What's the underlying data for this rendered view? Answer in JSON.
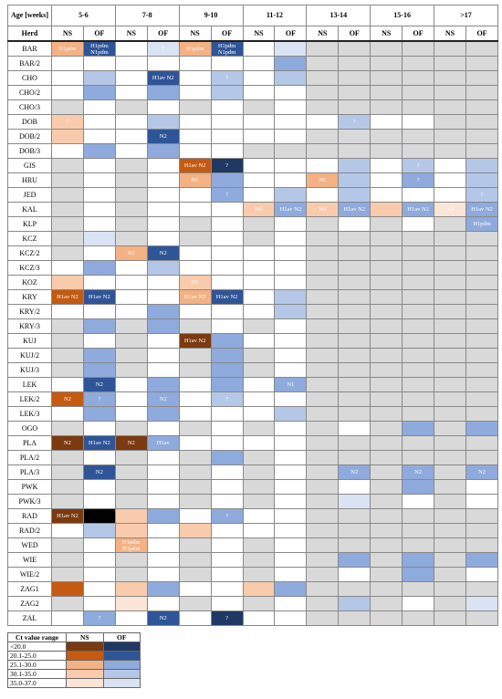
{
  "header": {
    "age_label": "Age [weeks]",
    "herd_label": "Herd",
    "age_groups": [
      "5-6",
      "7-8",
      "9-10",
      "11-12",
      "13-14",
      "15-16",
      ">17"
    ],
    "sub": [
      "NS",
      "OF"
    ]
  },
  "rows": [
    {
      "herd": "BAR",
      "cells": [
        {
          "color": "#f4b183",
          "text": "N1pdm"
        },
        {
          "color": "#2f5597",
          "text": "H1pdm N1pdm"
        },
        "#ffffff",
        {
          "color": "#dae3f3",
          "text": "?"
        },
        {
          "color": "#f4b183",
          "text": "H1pdm"
        },
        {
          "color": "#2f5597",
          "text": "H1pdm N1pdm"
        },
        "#ffffff",
        "#dae3f3",
        "#d9d9d9",
        "#d9d9d9",
        "#d9d9d9",
        "#d9d9d9",
        "#d9d9d9",
        "#d9d9d9"
      ]
    },
    {
      "herd": "BAR/2",
      "cells": [
        "#ffffff",
        "#ffffff",
        "#ffffff",
        "#ffffff",
        "#ffffff",
        "#ffffff",
        "#ffffff",
        "#8faadc",
        "#d9d9d9",
        "#d9d9d9",
        "#d9d9d9",
        "#d9d9d9",
        "#d9d9d9",
        "#d9d9d9"
      ]
    },
    {
      "herd": "CHO",
      "cells": [
        "#ffffff",
        "#b4c7e7",
        "#ffffff",
        {
          "color": "#2f5597",
          "text": "H1av N2"
        },
        "#ffffff",
        {
          "color": "#b4c7e7",
          "text": "?"
        },
        "#ffffff",
        "#b4c7e7",
        "#d9d9d9",
        "#d9d9d9",
        "#d9d9d9",
        "#d9d9d9",
        "#d9d9d9",
        "#d9d9d9"
      ]
    },
    {
      "herd": "CHO/2",
      "cells": [
        "#ffffff",
        "#8faadc",
        "#ffffff",
        "#8faadc",
        "#ffffff",
        "#b4c7e7",
        "#ffffff",
        "#ffffff",
        "#d9d9d9",
        "#d9d9d9",
        "#d9d9d9",
        "#d9d9d9",
        "#d9d9d9",
        "#d9d9d9"
      ]
    },
    {
      "herd": "CHO/3",
      "cells": [
        "#d9d9d9",
        "#ffffff",
        "#d9d9d9",
        "#ffffff",
        "#d9d9d9",
        "#ffffff",
        "#d9d9d9",
        "#ffffff",
        "#d9d9d9",
        "#d9d9d9",
        "#d9d9d9",
        "#d9d9d9",
        "#d9d9d9",
        "#d9d9d9"
      ]
    },
    {
      "herd": "DOB",
      "cells": [
        {
          "color": "#f8cbad",
          "text": "?"
        },
        "#ffffff",
        "#ffffff",
        "#b4c7e7",
        "#ffffff",
        "#ffffff",
        "#ffffff",
        "#ffffff",
        "#ffffff",
        {
          "color": "#b4c7e7",
          "text": "?"
        },
        "#ffffff",
        "#ffffff",
        "#d9d9d9",
        "#d9d9d9"
      ]
    },
    {
      "herd": "DOB/2",
      "cells": [
        "#f8cbad",
        "#ffffff",
        "#ffffff",
        {
          "color": "#2f5597",
          "text": "N2"
        },
        "#ffffff",
        "#ffffff",
        "#ffffff",
        "#ffffff",
        "#d9d9d9",
        "#d9d9d9",
        "#d9d9d9",
        "#d9d9d9",
        "#d9d9d9",
        "#d9d9d9"
      ]
    },
    {
      "herd": "DOB/3",
      "cells": [
        "#ffffff",
        "#8faadc",
        "#ffffff",
        "#8faadc",
        "#ffffff",
        "#ffffff",
        "#d9d9d9",
        "#d9d9d9",
        "#d9d9d9",
        "#d9d9d9",
        "#d9d9d9",
        "#d9d9d9",
        "#d9d9d9",
        "#d9d9d9"
      ]
    },
    {
      "herd": "GIS",
      "cells": [
        "#d9d9d9",
        "#ffffff",
        "#d9d9d9",
        "#ffffff",
        {
          "color": "#c55a11",
          "text": "H1av N2"
        },
        {
          "color": "#1f3864",
          "text": "?"
        },
        "#ffffff",
        "#ffffff",
        "#ffffff",
        "#b4c7e7",
        "#ffffff",
        {
          "color": "#b4c7e7",
          "text": "?"
        },
        "#ffffff",
        "#b4c7e7"
      ]
    },
    {
      "herd": "HRU",
      "cells": [
        "#d9d9d9",
        "#ffffff",
        "#d9d9d9",
        "#ffffff",
        {
          "color": "#f4b183",
          "text": "N1"
        },
        "#8faadc",
        "#ffffff",
        "#ffffff",
        {
          "color": "#f4b183",
          "text": "N1"
        },
        "#b4c7e7",
        "#ffffff",
        {
          "color": "#8faadc",
          "text": "?"
        },
        "#ffffff",
        "#b4c7e7"
      ]
    },
    {
      "herd": "JED",
      "cells": [
        "#d9d9d9",
        "#ffffff",
        "#d9d9d9",
        "#ffffff",
        "#ffffff",
        {
          "color": "#8faadc",
          "text": "?"
        },
        "#ffffff",
        "#b4c7e7",
        "#ffffff",
        "#b4c7e7",
        "#ffffff",
        "#ffffff",
        "#ffffff",
        {
          "color": "#b4c7e7",
          "text": "?"
        }
      ]
    },
    {
      "herd": "KAL",
      "cells": [
        "#d9d9d9",
        "#ffffff",
        "#d9d9d9",
        "#ffffff",
        "#ffffff",
        "#ffffff",
        {
          "color": "#f8cbad",
          "text": "N2"
        },
        {
          "color": "#8faadc",
          "text": "H1av N2"
        },
        {
          "color": "#f8cbad",
          "text": "N2"
        },
        {
          "color": "#8faadc",
          "text": "H1av N2"
        },
        "#f8cbad",
        {
          "color": "#8faadc",
          "text": "H1av N2"
        },
        {
          "color": "#fbe5d6",
          "text": "N2"
        },
        {
          "color": "#8faadc",
          "text": "H1av N2"
        }
      ]
    },
    {
      "herd": "KLP",
      "cells": [
        "#d9d9d9",
        "#ffffff",
        "#d9d9d9",
        "#ffffff",
        "#d9d9d9",
        "#ffffff",
        "#d9d9d9",
        "#ffffff",
        "#d9d9d9",
        "#ffffff",
        "#d9d9d9",
        "#ffffff",
        "#d9d9d9",
        {
          "color": "#8faadc",
          "text": "H1pdm"
        }
      ]
    },
    {
      "herd": "KCZ",
      "cells": [
        "#d9d9d9",
        "#dae3f3",
        "#d9d9d9",
        "#ffffff",
        "#d9d9d9",
        "#ffffff",
        "#d9d9d9",
        "#ffffff",
        "#d9d9d9",
        "#d9d9d9",
        "#d9d9d9",
        "#d9d9d9",
        "#d9d9d9",
        "#d9d9d9"
      ]
    },
    {
      "herd": "KCZ/2",
      "cells": [
        "#d9d9d9",
        "#ffffff",
        {
          "color": "#f4b183",
          "text": "N2"
        },
        {
          "color": "#2f5597",
          "text": "N2"
        },
        "#ffffff",
        "#ffffff",
        "#ffffff",
        "#ffffff",
        "#d9d9d9",
        "#d9d9d9",
        "#d9d9d9",
        "#d9d9d9",
        "#d9d9d9",
        "#d9d9d9"
      ]
    },
    {
      "herd": "KCZ/3",
      "cells": [
        "#ffffff",
        "#8faadc",
        "#ffffff",
        "#b4c7e7",
        "#ffffff",
        "#ffffff",
        "#ffffff",
        "#ffffff",
        "#d9d9d9",
        "#d9d9d9",
        "#d9d9d9",
        "#d9d9d9",
        "#d9d9d9",
        "#d9d9d9"
      ]
    },
    {
      "herd": "KOZ",
      "cells": [
        "#f8cbad",
        "#ffffff",
        "#ffffff",
        "#ffffff",
        {
          "color": "#f8cbad",
          "text": "N2"
        },
        "#ffffff",
        "#ffffff",
        "#ffffff",
        "#d9d9d9",
        "#d9d9d9",
        "#d9d9d9",
        "#d9d9d9",
        "#d9d9d9",
        "#d9d9d9"
      ]
    },
    {
      "herd": "KRY",
      "cells": [
        {
          "color": "#c55a11",
          "text": "H1av N2"
        },
        {
          "color": "#2f5597",
          "text": "H1av N2"
        },
        "#ffffff",
        "#ffffff",
        {
          "color": "#f4b183",
          "text": "H1av N2"
        },
        {
          "color": "#2f5597",
          "text": "H1av N2"
        },
        "#ffffff",
        "#b4c7e7",
        "#d9d9d9",
        "#d9d9d9",
        "#d9d9d9",
        "#d9d9d9",
        "#d9d9d9",
        "#d9d9d9"
      ]
    },
    {
      "herd": "KRY/2",
      "cells": [
        "#ffffff",
        "#ffffff",
        "#ffffff",
        "#8faadc",
        "#ffffff",
        "#ffffff",
        "#ffffff",
        "#b4c7e7",
        "#d9d9d9",
        "#d9d9d9",
        "#d9d9d9",
        "#d9d9d9",
        "#d9d9d9",
        "#d9d9d9"
      ]
    },
    {
      "herd": "KRY/3",
      "cells": [
        "#d9d9d9",
        "#8faadc",
        "#d9d9d9",
        "#8faadc",
        "#d9d9d9",
        "#ffffff",
        "#d9d9d9",
        "#ffffff",
        "#d9d9d9",
        "#d9d9d9",
        "#d9d9d9",
        "#d9d9d9",
        "#d9d9d9",
        "#d9d9d9"
      ]
    },
    {
      "herd": "KUJ",
      "cells": [
        "#d9d9d9",
        "#ffffff",
        "#d9d9d9",
        "#ffffff",
        {
          "color": "#7b3a10",
          "text": "H1av N2"
        },
        "#8faadc",
        "#ffffff",
        "#ffffff",
        "#d9d9d9",
        "#d9d9d9",
        "#d9d9d9",
        "#d9d9d9",
        "#d9d9d9",
        "#d9d9d9"
      ]
    },
    {
      "herd": "KUJ/2",
      "cells": [
        "#d9d9d9",
        "#8faadc",
        "#d9d9d9",
        "#ffffff",
        "#d9d9d9",
        "#8faadc",
        "#d9d9d9",
        "#ffffff",
        "#d9d9d9",
        "#d9d9d9",
        "#d9d9d9",
        "#d9d9d9",
        "#d9d9d9",
        "#d9d9d9"
      ]
    },
    {
      "herd": "KUJ/3",
      "cells": [
        "#d9d9d9",
        "#8faadc",
        "#d9d9d9",
        "#ffffff",
        "#d9d9d9",
        "#8faadc",
        "#d9d9d9",
        "#ffffff",
        "#d9d9d9",
        "#d9d9d9",
        "#d9d9d9",
        "#d9d9d9",
        "#d9d9d9",
        "#d9d9d9"
      ]
    },
    {
      "herd": "LEK",
      "cells": [
        "#ffffff",
        {
          "color": "#2f5597",
          "text": "N2"
        },
        "#ffffff",
        "#8faadc",
        "#ffffff",
        "#8faadc",
        "#ffffff",
        {
          "color": "#8faadc",
          "text": "N1"
        },
        "#d9d9d9",
        "#d9d9d9",
        "#d9d9d9",
        "#d9d9d9",
        "#d9d9d9",
        "#d9d9d9"
      ]
    },
    {
      "herd": "LEK/2",
      "cells": [
        {
          "color": "#c55a11",
          "text": "N2"
        },
        {
          "color": "#8faadc",
          "text": "?"
        },
        "#ffffff",
        {
          "color": "#8faadc",
          "text": "N2"
        },
        "#ffffff",
        {
          "color": "#b4c7e7",
          "text": "?"
        },
        "#ffffff",
        "#ffffff",
        "#d9d9d9",
        "#d9d9d9",
        "#d9d9d9",
        "#d9d9d9",
        "#d9d9d9",
        "#d9d9d9"
      ]
    },
    {
      "herd": "LEK/3",
      "cells": [
        "#ffffff",
        "#8faadc",
        "#ffffff",
        "#8faadc",
        "#ffffff",
        "#ffffff",
        "#ffffff",
        "#b4c7e7",
        "#d9d9d9",
        "#d9d9d9",
        "#d9d9d9",
        "#d9d9d9",
        "#d9d9d9",
        "#d9d9d9"
      ]
    },
    {
      "herd": "OGO",
      "cells": [
        "#d9d9d9",
        "#ffffff",
        "#d9d9d9",
        "#ffffff",
        "#d9d9d9",
        "#ffffff",
        "#d9d9d9",
        "#ffffff",
        "#d9d9d9",
        "#ffffff",
        "#d9d9d9",
        "#8faadc",
        "#d9d9d9",
        "#8faadc"
      ]
    },
    {
      "herd": "PLA",
      "cells": [
        {
          "color": "#7b3a10",
          "text": "N2"
        },
        {
          "color": "#2f5597",
          "text": "H1av N2"
        },
        {
          "color": "#7b3a10",
          "text": "N2"
        },
        {
          "color": "#8faadc",
          "text": "H1av"
        },
        "#ffffff",
        "#ffffff",
        "#ffffff",
        "#ffffff",
        "#d9d9d9",
        "#d9d9d9",
        "#d9d9d9",
        "#d9d9d9",
        "#d9d9d9",
        "#d9d9d9"
      ]
    },
    {
      "herd": "PLA/2",
      "cells": [
        "#d9d9d9",
        "#ffffff",
        "#d9d9d9",
        "#ffffff",
        "#d9d9d9",
        "#8faadc",
        "#d9d9d9",
        "#ffffff",
        "#d9d9d9",
        "#d9d9d9",
        "#d9d9d9",
        "#d9d9d9",
        "#d9d9d9",
        "#d9d9d9"
      ]
    },
    {
      "herd": "PLA/3",
      "cells": [
        "#d9d9d9",
        {
          "color": "#2f5597",
          "text": "N2"
        },
        "#d9d9d9",
        "#ffffff",
        "#d9d9d9",
        "#ffffff",
        "#d9d9d9",
        "#ffffff",
        "#d9d9d9",
        {
          "color": "#8faadc",
          "text": "N2"
        },
        "#d9d9d9",
        {
          "color": "#8faadc",
          "text": "N2"
        },
        "#d9d9d9",
        {
          "color": "#8faadc",
          "text": "N2"
        }
      ]
    },
    {
      "herd": "PWK",
      "cells": [
        "#d9d9d9",
        "#ffffff",
        "#d9d9d9",
        "#ffffff",
        "#d9d9d9",
        "#ffffff",
        "#d9d9d9",
        "#ffffff",
        "#d9d9d9",
        "#ffffff",
        "#d9d9d9",
        "#8faadc",
        "#d9d9d9",
        "#ffffff"
      ]
    },
    {
      "herd": "PWK/3",
      "cells": [
        "#d9d9d9",
        "#ffffff",
        "#d9d9d9",
        "#ffffff",
        "#d9d9d9",
        "#ffffff",
        "#d9d9d9",
        "#ffffff",
        "#d9d9d9",
        "#dae3f3",
        "#d9d9d9",
        "#ffffff",
        "#d9d9d9",
        "#ffffff"
      ]
    },
    {
      "herd": "RAD",
      "cells": [
        {
          "color": "#7b3a10",
          "text": "H1av N2"
        },
        "#000000",
        "#f8cbad",
        "#8faadc",
        "#ffffff",
        {
          "color": "#8faadc",
          "text": "?"
        },
        "#ffffff",
        "#ffffff",
        "#d9d9d9",
        "#d9d9d9",
        "#d9d9d9",
        "#d9d9d9",
        "#d9d9d9",
        "#d9d9d9"
      ]
    },
    {
      "herd": "RAD/2",
      "cells": [
        "#ffffff",
        "#b4c7e7",
        "#f8cbad",
        "#ffffff",
        "#f8cbad",
        "#ffffff",
        "#ffffff",
        "#ffffff",
        "#d9d9d9",
        "#d9d9d9",
        "#d9d9d9",
        "#d9d9d9",
        "#d9d9d9",
        "#d9d9d9"
      ]
    },
    {
      "herd": "WED",
      "cells": [
        "#d9d9d9",
        "#ffffff",
        {
          "color": "#f4b183",
          "text": "H1pdm N1pdm"
        },
        "#ffffff",
        "#d9d9d9",
        "#ffffff",
        "#d9d9d9",
        "#ffffff",
        "#d9d9d9",
        "#d9d9d9",
        "#d9d9d9",
        "#d9d9d9",
        "#d9d9d9",
        "#d9d9d9"
      ]
    },
    {
      "herd": "WIE",
      "cells": [
        "#d9d9d9",
        "#ffffff",
        "#d9d9d9",
        "#ffffff",
        "#d9d9d9",
        "#ffffff",
        "#d9d9d9",
        "#ffffff",
        "#d9d9d9",
        "#8faadc",
        "#d9d9d9",
        "#8faadc",
        "#d9d9d9",
        "#8faadc"
      ]
    },
    {
      "herd": "WIE/2",
      "cells": [
        "#d9d9d9",
        "#ffffff",
        "#d9d9d9",
        "#ffffff",
        "#d9d9d9",
        "#ffffff",
        "#d9d9d9",
        "#ffffff",
        "#d9d9d9",
        "#ffffff",
        "#d9d9d9",
        "#8faadc",
        "#d9d9d9",
        "#ffffff"
      ]
    },
    {
      "herd": "ZAG1",
      "cells": [
        "#c55a11",
        "#ffffff",
        "#f8cbad",
        "#8faadc",
        "#ffffff",
        "#ffffff",
        "#f8cbad",
        "#8faadc",
        "#d9d9d9",
        "#d9d9d9",
        "#d9d9d9",
        "#d9d9d9",
        "#d9d9d9",
        "#d9d9d9"
      ]
    },
    {
      "herd": "ZAG2",
      "cells": [
        "#d9d9d9",
        "#ffffff",
        "#fbe5d6",
        "#ffffff",
        "#d9d9d9",
        "#ffffff",
        "#d9d9d9",
        "#ffffff",
        "#d9d9d9",
        "#b4c7e7",
        "#d9d9d9",
        "#ffffff",
        "#d9d9d9",
        "#dae3f3"
      ]
    },
    {
      "herd": "ZAL",
      "cells": [
        "#ffffff",
        {
          "color": "#8faadc",
          "text": "?"
        },
        "#ffffff",
        {
          "color": "#2f5597",
          "text": "N2"
        },
        "#ffffff",
        {
          "color": "#1f3864",
          "text": "?"
        },
        "#ffffff",
        "#ffffff",
        "#d9d9d9",
        "#d9d9d9",
        "#d9d9d9",
        "#d9d9d9",
        "#d9d9d9",
        "#d9d9d9"
      ]
    }
  ],
  "legend": {
    "title": "Ct value range",
    "columns": [
      "NS",
      "OF"
    ],
    "rows": [
      {
        "range": "<20.0",
        "ns_color": "#7b3a10",
        "of_color": "#1f3864"
      },
      {
        "range": "20.1-25.0",
        "ns_color": "#c55a11",
        "of_color": "#2f5597"
      },
      {
        "range": "25.1-30.0",
        "ns_color": "#f4b183",
        "of_color": "#8faadc"
      },
      {
        "range": "30.1-35.0",
        "ns_color": "#f8cbad",
        "of_color": "#b4c7e7"
      },
      {
        "range": "35.0-37.0",
        "ns_color": "#fbe5d6",
        "of_color": "#dae3f3"
      }
    ]
  }
}
